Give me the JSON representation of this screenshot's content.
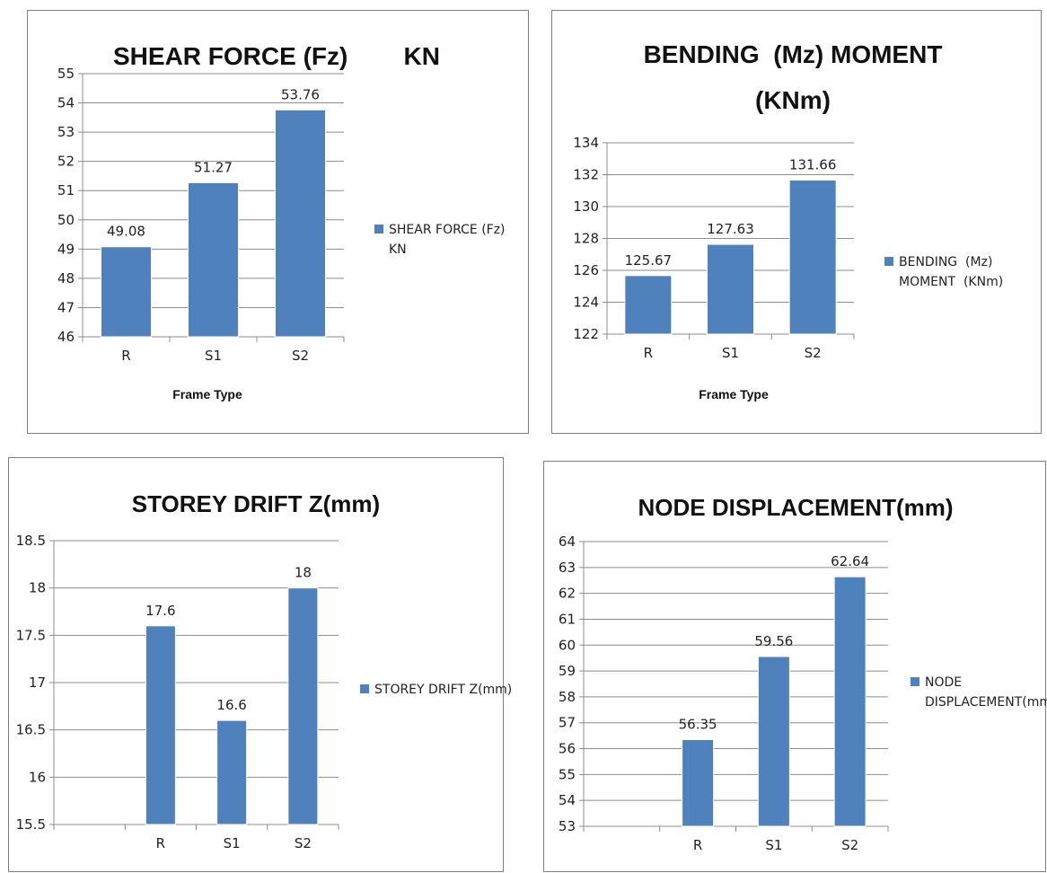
{
  "colors": {
    "bar": "#4f81bd",
    "bar_edge": "#ffffff"
  },
  "chart_data": [
    {
      "type": "bar",
      "title_lines": [
        "SHEAR FORCE (Fz)        KN"
      ],
      "categories": [
        "R",
        "S1",
        "S2"
      ],
      "series": [
        {
          "name": "SHEAR FORCE (Fz) KN",
          "values": [
            49.08,
            51.27,
            53.76
          ]
        }
      ],
      "data_labels": [
        "49.08",
        "51.27",
        "53.76"
      ],
      "xlabel": "Frame Type",
      "ylabel": "",
      "ylim": [
        46,
        55
      ],
      "yticks": [
        "46",
        "47",
        "48",
        "49",
        "50",
        "51",
        "52",
        "53",
        "54",
        "55"
      ],
      "legend_lines": [
        "SHEAR FORCE (Fz)",
        "KN"
      ],
      "legend_position": "right",
      "grid": true
    },
    {
      "type": "bar",
      "title_lines": [
        "BENDING  (Mz) MOMENT",
        "(KNm)"
      ],
      "categories": [
        "R",
        "S1",
        "S2"
      ],
      "series": [
        {
          "name": "BENDING (Mz) MOMENT (KNm)",
          "values": [
            125.67,
            127.63,
            131.66
          ]
        }
      ],
      "data_labels": [
        "125.67",
        "127.63",
        "131.66"
      ],
      "xlabel": "Frame Type",
      "ylabel": "",
      "ylim": [
        122,
        134
      ],
      "yticks": [
        "122",
        "124",
        "126",
        "128",
        "130",
        "132",
        "134"
      ],
      "legend_lines": [
        "BENDING  (Mz)",
        "MOMENT  (KNm)"
      ],
      "legend_position": "right",
      "grid": true
    },
    {
      "type": "bar",
      "title_lines": [
        "STOREY DRIFT Z(mm)"
      ],
      "categories": [
        "",
        "R",
        "S1",
        "S2"
      ],
      "series": [
        {
          "name": "STOREY DRIFT Z(mm)",
          "values": [
            null,
            17.6,
            16.6,
            18
          ]
        }
      ],
      "data_labels": [
        "",
        "17.6",
        "16.6",
        "18"
      ],
      "xlabel": "",
      "ylabel": "",
      "ylim": [
        15.5,
        18.5
      ],
      "yticks": [
        "15.5",
        "16",
        "16.5",
        "17",
        "17.5",
        "18",
        "18.5"
      ],
      "legend_lines": [
        "STOREY DRIFT Z(mm)"
      ],
      "legend_position": "right",
      "grid": true
    },
    {
      "type": "bar",
      "title_lines": [
        "NODE DISPLACEMENT(mm)"
      ],
      "categories": [
        "",
        "R",
        "S1",
        "S2"
      ],
      "series": [
        {
          "name": "NODE DISPLACEMENT(mm)",
          "values": [
            null,
            56.35,
            59.56,
            62.64
          ]
        }
      ],
      "data_labels": [
        "",
        "56.35",
        "59.56",
        "62.64"
      ],
      "xlabel": "",
      "ylabel": "",
      "ylim": [
        53,
        64
      ],
      "yticks": [
        "53",
        "54",
        "55",
        "56",
        "57",
        "58",
        "59",
        "60",
        "61",
        "62",
        "63",
        "64"
      ],
      "legend_lines": [
        "NODE",
        "DISPLACEMENT(mm)"
      ],
      "legend_position": "right",
      "grid": true
    }
  ]
}
